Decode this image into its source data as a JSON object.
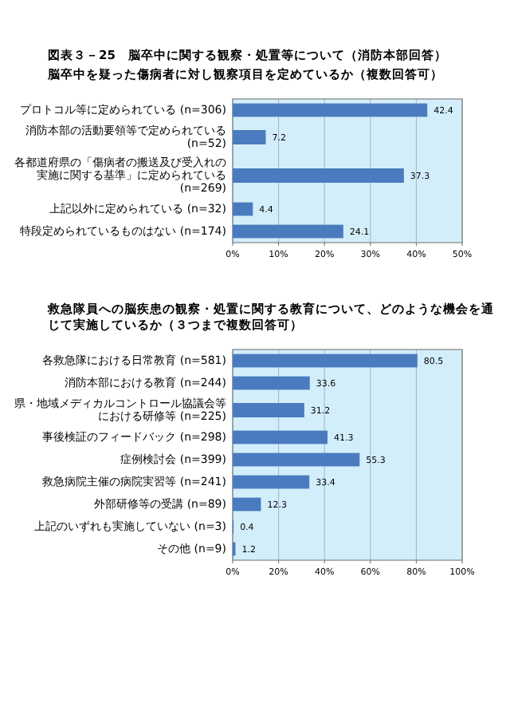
{
  "chart_data": [
    {
      "type": "bar",
      "orientation": "horizontal",
      "title": "図表３－25　脳卒中に関する観察・処置等について（消防本部回答）",
      "subtitle": "脳卒中を疑った傷病者に対し観察項目を定めているか（複数回答可）",
      "categories": [
        "プロトコル等に定められている (n=306)",
        "消防本部の活動要領等で定められている (n=52)",
        "各都道府県の「傷病者の搬送及び受入れの実施に関する基準」に定められている (n=269)",
        "上記以外に定められている (n=32)",
        "特段定められているものはない (n=174)"
      ],
      "values": [
        42.4,
        7.2,
        37.3,
        4.4,
        24.1
      ],
      "color": "#4a7bbf",
      "xlim": [
        0,
        50
      ],
      "xticks": [
        {
          "value": 0,
          "label": "0%"
        },
        {
          "value": 10,
          "label": "10%"
        },
        {
          "value": 20,
          "label": "20%"
        },
        {
          "value": 30,
          "label": "30%"
        },
        {
          "value": 40,
          "label": "40%"
        },
        {
          "value": 50,
          "label": "50%"
        }
      ],
      "grid": "x",
      "data_labels": true
    },
    {
      "type": "bar",
      "orientation": "horizontal",
      "title": "救急隊員への脳疾患の観察・処置に関する教育について、どのような機会を通じて実施しているか（３つまで複数回答可）",
      "categories": [
        "各救急隊における日常教育 (n=581)",
        "消防本部における教育 (n=244)",
        "県・地域メディカルコントロール協議会等における研修等 (n=225)",
        "事後検証のフィードバック (n=298)",
        "症例検討会 (n=399)",
        "救急病院主催の病院実習等 (n=241)",
        "外部研修等の受講 (n=89)",
        "上記のいずれも実施していない (n=3)",
        "その他 (n=9)"
      ],
      "values": [
        80.5,
        33.6,
        31.2,
        41.3,
        55.3,
        33.4,
        12.3,
        0.4,
        1.2
      ],
      "color": "#4a7bbf",
      "xlim": [
        0,
        100
      ],
      "xticks": [
        {
          "value": 0,
          "label": "0%"
        },
        {
          "value": 20,
          "label": "20%"
        },
        {
          "value": 40,
          "label": "40%"
        },
        {
          "value": 60,
          "label": "60%"
        },
        {
          "value": 80,
          "label": "80%"
        },
        {
          "value": 100,
          "label": "100%"
        }
      ],
      "grid": "x",
      "data_labels": true
    }
  ]
}
